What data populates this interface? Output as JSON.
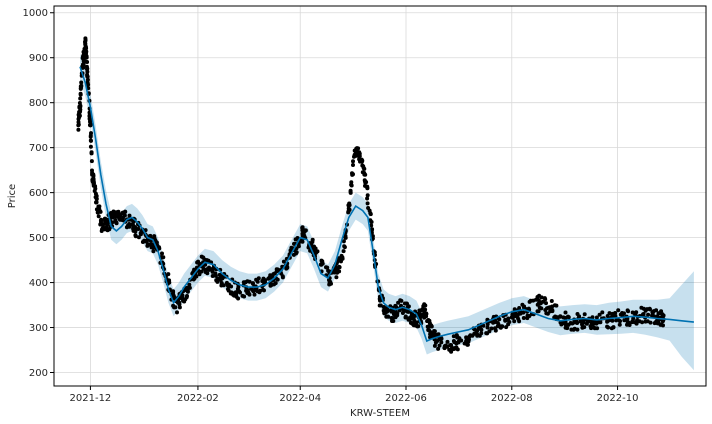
{
  "chart_data": {
    "type": "line",
    "title": "",
    "xlabel": "KRW-STEEM",
    "ylabel": "Price",
    "ylim": [
      170,
      1015
    ],
    "xlim": [
      "2021-11-10",
      "2022-11-21"
    ],
    "yticks": [
      200,
      300,
      400,
      500,
      600,
      700,
      800,
      900,
      1000
    ],
    "xticks": [
      "2021-12",
      "2022-02",
      "2022-04",
      "2022-06",
      "2022-08",
      "2022-10"
    ],
    "grid": true,
    "legend": "none",
    "colors": {
      "forecast_line": "#0072B2",
      "uncertainty_band": "#0072B2",
      "observed_points": "#000000",
      "grid": "#d9d9d9"
    },
    "series": [
      {
        "kind": "forecast",
        "x": [
          "2021-11-25",
          "2021-11-28",
          "2021-12-01",
          "2021-12-04",
          "2021-12-07",
          "2021-12-10",
          "2021-12-13",
          "2021-12-16",
          "2021-12-19",
          "2021-12-22",
          "2021-12-25",
          "2021-12-28",
          "2021-12-31",
          "2022-01-03",
          "2022-01-06",
          "2022-01-09",
          "2022-01-12",
          "2022-01-15",
          "2022-01-18",
          "2022-01-21",
          "2022-01-24",
          "2022-01-28",
          "2022-02-01",
          "2022-02-05",
          "2022-02-10",
          "2022-02-15",
          "2022-02-20",
          "2022-02-25",
          "2022-03-02",
          "2022-03-07",
          "2022-03-12",
          "2022-03-17",
          "2022-03-22",
          "2022-03-27",
          "2022-04-01",
          "2022-04-05",
          "2022-04-09",
          "2022-04-13",
          "2022-04-17",
          "2022-04-21",
          "2022-04-25",
          "2022-04-29",
          "2022-05-03",
          "2022-05-07",
          "2022-05-10",
          "2022-05-13",
          "2022-05-16",
          "2022-05-19",
          "2022-05-22",
          "2022-05-26",
          "2022-05-30",
          "2022-06-03",
          "2022-06-07",
          "2022-06-10",
          "2022-06-13",
          "2022-06-16",
          "2022-06-20",
          "2022-06-25",
          "2022-07-01",
          "2022-07-07",
          "2022-07-13",
          "2022-07-19",
          "2022-07-25",
          "2022-08-01",
          "2022-08-08",
          "2022-08-15",
          "2022-08-22",
          "2022-08-29",
          "2022-09-05",
          "2022-09-12",
          "2022-09-19",
          "2022-09-26",
          "2022-10-03",
          "2022-10-10",
          "2022-10-17",
          "2022-10-24",
          "2022-10-31",
          "2022-11-07",
          "2022-11-14"
        ],
        "y": [
          880,
          845,
          790,
          720,
          640,
          575,
          525,
          515,
          525,
          540,
          545,
          535,
          520,
          500,
          495,
          470,
          430,
          385,
          355,
          370,
          390,
          410,
          430,
          445,
          440,
          420,
          405,
          395,
          390,
          390,
          395,
          410,
          430,
          465,
          500,
          495,
          460,
          420,
          410,
          440,
          495,
          545,
          570,
          560,
          545,
          470,
          390,
          355,
          345,
          340,
          345,
          340,
          330,
          305,
          270,
          275,
          280,
          285,
          290,
          295,
          305,
          315,
          325,
          335,
          340,
          330,
          320,
          315,
          318,
          320,
          317,
          320,
          322,
          325,
          323,
          320,
          318,
          315,
          312
        ]
      },
      {
        "kind": "uncertainty_upper",
        "y": [
          910,
          875,
          820,
          750,
          670,
          605,
          555,
          545,
          555,
          570,
          575,
          565,
          550,
          530,
          525,
          500,
          460,
          415,
          385,
          400,
          420,
          440,
          460,
          475,
          470,
          450,
          435,
          425,
          420,
          420,
          425,
          440,
          460,
          495,
          530,
          525,
          490,
          450,
          440,
          470,
          525,
          575,
          600,
          590,
          575,
          500,
          420,
          385,
          375,
          370,
          375,
          370,
          360,
          335,
          300,
          305,
          310,
          315,
          320,
          325,
          335,
          345,
          355,
          365,
          370,
          360,
          350,
          347,
          350,
          352,
          350,
          355,
          358,
          362,
          362,
          362,
          365,
          395,
          425
        ]
      },
      {
        "kind": "uncertainty_lower",
        "y": [
          850,
          815,
          760,
          690,
          610,
          545,
          495,
          485,
          495,
          510,
          515,
          505,
          490,
          470,
          465,
          440,
          400,
          355,
          325,
          340,
          360,
          380,
          400,
          415,
          410,
          390,
          375,
          365,
          360,
          360,
          365,
          380,
          400,
          435,
          470,
          465,
          430,
          390,
          380,
          410,
          465,
          515,
          540,
          530,
          515,
          440,
          360,
          325,
          315,
          310,
          315,
          310,
          300,
          275,
          240,
          245,
          250,
          255,
          260,
          265,
          275,
          285,
          295,
          305,
          310,
          300,
          290,
          283,
          286,
          288,
          284,
          285,
          286,
          288,
          284,
          278,
          271,
          235,
          205
        ]
      },
      {
        "kind": "observed",
        "x": [
          "2021-11-24",
          "2021-11-25",
          "2021-11-26",
          "2021-11-27",
          "2021-11-28",
          "2021-11-29",
          "2021-11-30",
          "2021-12-01",
          "2021-12-02",
          "2021-12-04",
          "2021-12-06",
          "2021-12-08",
          "2021-12-11",
          "2021-12-14",
          "2021-12-18",
          "2021-12-22",
          "2021-12-26",
          "2021-12-30",
          "2022-01-03",
          "2022-01-07",
          "2022-01-11",
          "2022-01-15",
          "2022-01-19",
          "2022-01-23",
          "2022-01-27",
          "2022-01-31",
          "2022-02-04",
          "2022-02-09",
          "2022-02-14",
          "2022-02-19",
          "2022-02-24",
          "2022-03-01",
          "2022-03-06",
          "2022-03-11",
          "2022-03-16",
          "2022-03-21",
          "2022-03-26",
          "2022-03-31",
          "2022-04-03",
          "2022-04-08",
          "2022-04-13",
          "2022-04-18",
          "2022-04-22",
          "2022-04-26",
          "2022-04-29",
          "2022-05-02",
          "2022-05-05",
          "2022-05-08",
          "2022-05-11",
          "2022-05-14",
          "2022-05-17",
          "2022-05-21",
          "2022-05-25",
          "2022-05-29",
          "2022-06-02",
          "2022-06-05",
          "2022-06-09",
          "2022-06-12",
          "2022-06-15",
          "2022-06-19",
          "2022-06-24",
          "2022-06-30",
          "2022-07-06",
          "2022-07-12",
          "2022-07-18",
          "2022-07-24",
          "2022-07-30",
          "2022-08-05",
          "2022-08-11",
          "2022-08-17",
          "2022-08-23",
          "2022-08-29",
          "2022-09-04",
          "2022-09-10",
          "2022-09-16",
          "2022-09-22",
          "2022-09-28",
          "2022-10-04",
          "2022-10-10",
          "2022-10-16",
          "2022-10-22",
          "2022-10-26"
        ],
        "y": [
          750,
          790,
          860,
          900,
          930,
          880,
          820,
          750,
          640,
          590,
          560,
          520,
          530,
          545,
          550,
          540,
          525,
          510,
          495,
          485,
          455,
          400,
          345,
          365,
          395,
          425,
          445,
          430,
          410,
          395,
          380,
          385,
          390,
          395,
          405,
          420,
          455,
          490,
          510,
          480,
          440,
          410,
          425,
          470,
          560,
          680,
          690,
          640,
          560,
          450,
          360,
          335,
          330,
          345,
          335,
          320,
          320,
          340,
          290,
          270,
          260,
          265,
          275,
          285,
          300,
          310,
          320,
          330,
          340,
          355,
          345,
          325,
          310,
          315,
          310,
          320,
          315,
          325,
          320,
          330,
          325,
          320
        ]
      }
    ]
  }
}
